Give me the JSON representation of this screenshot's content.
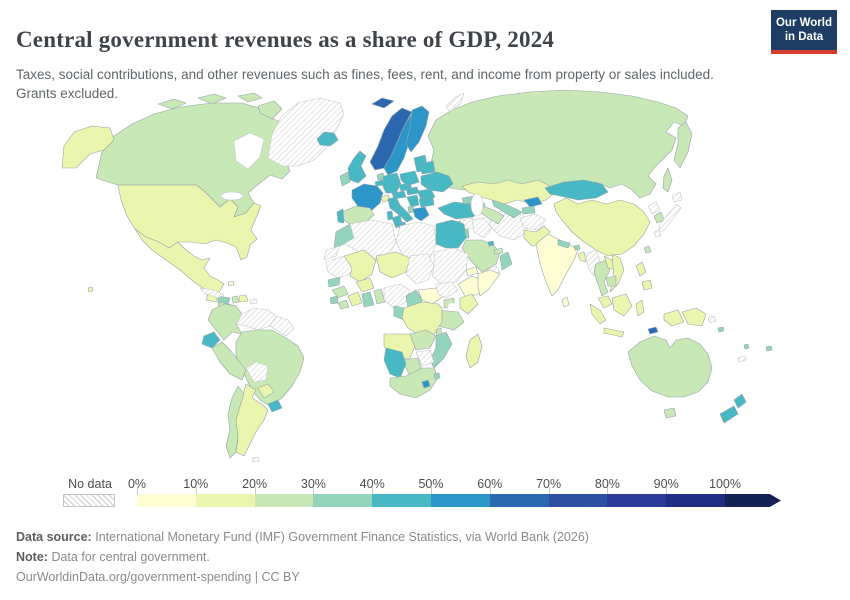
{
  "header": {
    "title": "Central government revenues as a share of GDP, 2024",
    "subtitle": "Taxes, social contributions, and other revenues such as fines, fees, rent, and income from property or sales included. Grants excluded.",
    "logo_line1": "Our World",
    "logo_line2": "in Data",
    "logo_bg": "#1d3d63",
    "logo_accent": "#d73c32"
  },
  "legend": {
    "no_data_label": "No data",
    "tick_labels": [
      "0%",
      "10%",
      "20%",
      "30%",
      "40%",
      "50%",
      "60%",
      "70%",
      "80%",
      "90%",
      "100%"
    ],
    "segment_colors": [
      "#fefdd3",
      "#eaf5ae",
      "#c8e8b6",
      "#93d5bc",
      "#48b8c5",
      "#2d96c9",
      "#2b68b0",
      "#2d4fa4",
      "#2c3a97",
      "#202d82"
    ],
    "arrow_color": "#132153"
  },
  "footer": {
    "data_source_label": "Data source:",
    "data_source": "International Monetary Fund (IMF) Government Finance Statistics, via World Bank (2026)",
    "note_label": "Note:",
    "note": "Data for central government.",
    "link": "OurWorldinData.org/government-spending | CC BY"
  },
  "chart_data": {
    "type": "choropleth",
    "title": "Central government revenues as a share of GDP, 2024",
    "unit": "% of GDP",
    "legend_position": "bottom",
    "bins": [
      "0-10%",
      "10-20%",
      "20-30%",
      "30-40%",
      "40-50%",
      "50-60%",
      "60-70%",
      "70-80%",
      "80-90%",
      "90-100%",
      ">100%"
    ],
    "palette": {
      "0-10%": "#fefdd3",
      "10-20%": "#eaf5ae",
      "20-30%": "#c8e8b6",
      "30-40%": "#93d5bc",
      "40-50%": "#48b8c5",
      "50-60%": "#2d96c9",
      "60-70%": "#2b68b0",
      "70-80%": "#2d4fa4",
      "80-90%": "#2c3a97",
      "90-100%": "#202d82",
      ">100%": "#132153",
      "no-data": "hatched"
    },
    "countries": {
      "canada": {
        "name": "Canada",
        "bin": "20-30%"
      },
      "united-states": {
        "name": "United States",
        "bin": "10-20%"
      },
      "mexico": {
        "name": "Mexico",
        "bin": "10-20%"
      },
      "greenland": {
        "name": "Greenland",
        "bin": "no-data"
      },
      "iceland": {
        "name": "Iceland",
        "bin": "40-50%"
      },
      "guatemala": {
        "name": "Guatemala",
        "bin": "10-20%"
      },
      "honduras": {
        "name": "Honduras",
        "bin": "30-40%"
      },
      "nicaragua": {
        "name": "Nicaragua",
        "bin": "30-40%"
      },
      "costa-rica": {
        "name": "Costa Rica",
        "bin": "20-30%"
      },
      "panama": {
        "name": "Panama",
        "bin": "30-40%"
      },
      "cuba": {
        "name": "Cuba",
        "bin": "no-data"
      },
      "haiti": {
        "name": "Haiti",
        "bin": "20-30%"
      },
      "dominican-republic": {
        "name": "Dominican Republic",
        "bin": "10-20%"
      },
      "jamaica": {
        "name": "Jamaica",
        "bin": "20-30%"
      },
      "puerto-rico": {
        "name": "Puerto Rico",
        "bin": "no-data"
      },
      "bahamas": {
        "name": "Bahamas",
        "bin": "0-10%"
      },
      "trinidad-and-tobago": {
        "name": "Trinidad and Tobago",
        "bin": "20-30%"
      },
      "colombia": {
        "name": "Colombia",
        "bin": "20-30%"
      },
      "venezuela": {
        "name": "Venezuela",
        "bin": "no-data"
      },
      "guyana": {
        "name": "Guyana",
        "bin": "no-data"
      },
      "ecuador": {
        "name": "Ecuador",
        "bin": "40-50%"
      },
      "peru": {
        "name": "Peru",
        "bin": "20-30%"
      },
      "brazil": {
        "name": "Brazil",
        "bin": "20-30%"
      },
      "bolivia": {
        "name": "Bolivia",
        "bin": "no-data"
      },
      "paraguay": {
        "name": "Paraguay",
        "bin": "10-20%"
      },
      "uruguay": {
        "name": "Uruguay",
        "bin": "40-50%"
      },
      "argentina": {
        "name": "Argentina",
        "bin": "10-20%"
      },
      "chile": {
        "name": "Chile",
        "bin": "20-30%"
      },
      "norway": {
        "name": "Norway",
        "bin": "60-70%"
      },
      "sweden": {
        "name": "Sweden",
        "bin": "50-60%"
      },
      "finland": {
        "name": "Finland",
        "bin": "50-60%"
      },
      "denmark": {
        "name": "Denmark",
        "bin": "40-50%"
      },
      "baltic-states": {
        "name": "Estonia, Latvia, Lithuania",
        "bin": "40-50%"
      },
      "united-kingdom": {
        "name": "United Kingdom",
        "bin": "40-50%"
      },
      "ireland": {
        "name": "Ireland",
        "bin": "30-40%"
      },
      "netherlands": {
        "name": "Netherlands",
        "bin": "30-40%"
      },
      "belgium": {
        "name": "Belgium",
        "bin": "40-50%"
      },
      "germany": {
        "name": "Germany",
        "bin": "40-50%"
      },
      "france": {
        "name": "France",
        "bin": "50-60%"
      },
      "switzerland": {
        "name": "Switzerland",
        "bin": "10-20%"
      },
      "spain": {
        "name": "Spain",
        "bin": "20-30%"
      },
      "portugal": {
        "name": "Portugal",
        "bin": "40-50%"
      },
      "italy": {
        "name": "Italy",
        "bin": "40-50%"
      },
      "austria": {
        "name": "Austria",
        "bin": "40-50%"
      },
      "czechia": {
        "name": "Czechia",
        "bin": "40-50%"
      },
      "poland": {
        "name": "Poland",
        "bin": "40-50%"
      },
      "belarus": {
        "name": "Belarus",
        "bin": "40-50%"
      },
      "ukraine": {
        "name": "Ukraine",
        "bin": "40-50%"
      },
      "romania": {
        "name": "Romania",
        "bin": "40-50%"
      },
      "hungary": {
        "name": "Hungary",
        "bin": "40-50%"
      },
      "serbia": {
        "name": "Serbia",
        "bin": "40-50%"
      },
      "bulgaria": {
        "name": "Bulgaria",
        "bin": "40-50%"
      },
      "greece": {
        "name": "Greece",
        "bin": "50-60%"
      },
      "albania": {
        "name": "Albania",
        "bin": "30-40%"
      },
      "russia": {
        "name": "Russia",
        "bin": "20-30%"
      },
      "turkey": {
        "name": "Turkey",
        "bin": "40-50%"
      },
      "cyprus": {
        "name": "Cyprus",
        "bin": "30-40%"
      },
      "georgia": {
        "name": "Georgia",
        "bin": "30-40%"
      },
      "armenia": {
        "name": "Armenia",
        "bin": "40-50%"
      },
      "azerbaijan": {
        "name": "Azerbaijan",
        "bin": "30-40%"
      },
      "syria": {
        "name": "Syria",
        "bin": "no-data"
      },
      "israel": {
        "name": "Israel",
        "bin": "50-60%"
      },
      "jordan": {
        "name": "Jordan",
        "bin": "30-40%"
      },
      "iraq": {
        "name": "Iraq",
        "bin": "no-data"
      },
      "iran": {
        "name": "Iran",
        "bin": "no-data"
      },
      "saudi-arabia": {
        "name": "Saudi Arabia",
        "bin": "20-30%"
      },
      "yemen": {
        "name": "Yemen",
        "bin": "no-data"
      },
      "oman": {
        "name": "Oman",
        "bin": "30-40%"
      },
      "united-arab-emirates": {
        "name": "United Arab Emirates",
        "bin": "20-30%"
      },
      "kuwait": {
        "name": "Kuwait",
        "bin": "40-50%"
      },
      "kazakhstan": {
        "name": "Kazakhstan",
        "bin": "10-20%"
      },
      "uzbekistan": {
        "name": "Uzbekistan",
        "bin": "30-40%"
      },
      "turkmenistan": {
        "name": "Turkmenistan",
        "bin": "20-30%"
      },
      "kyrgyzstan": {
        "name": "Kyrgyzstan",
        "bin": "50-60%"
      },
      "tajikistan": {
        "name": "Tajikistan",
        "bin": "30-40%"
      },
      "afghanistan": {
        "name": "Afghanistan",
        "bin": "no-data"
      },
      "pakistan": {
        "name": "Pakistan",
        "bin": "10-20%"
      },
      "mongolia": {
        "name": "Mongolia",
        "bin": "40-50%"
      },
      "china": {
        "name": "China",
        "bin": "10-20%"
      },
      "taiwan": {
        "name": "Taiwan",
        "bin": "20-30%"
      },
      "north-korea": {
        "name": "North Korea",
        "bin": "no-data"
      },
      "south-korea": {
        "name": "South Korea",
        "bin": "20-30%"
      },
      "japan": {
        "name": "Japan",
        "bin": "no-data"
      },
      "india": {
        "name": "India",
        "bin": "0-10%"
      },
      "nepal": {
        "name": "Nepal",
        "bin": "30-40%"
      },
      "bhutan": {
        "name": "Bhutan",
        "bin": "30-40%"
      },
      "bangladesh": {
        "name": "Bangladesh",
        "bin": "10-20%"
      },
      "sri-lanka": {
        "name": "Sri Lanka",
        "bin": "0-10%"
      },
      "myanmar": {
        "name": "Myanmar",
        "bin": "no-data"
      },
      "thailand": {
        "name": "Thailand",
        "bin": "20-30%"
      },
      "laos": {
        "name": "Laos",
        "bin": "10-20%"
      },
      "vietnam": {
        "name": "Vietnam",
        "bin": "10-20%"
      },
      "cambodia": {
        "name": "Cambodia",
        "bin": "20-30%"
      },
      "malaysia": {
        "name": "Malaysia",
        "bin": "10-20%"
      },
      "indonesia": {
        "name": "Indonesia",
        "bin": "10-20%"
      },
      "philippines": {
        "name": "Philippines",
        "bin": "10-20%"
      },
      "papua-new-guinea": {
        "name": "Papua New Guinea",
        "bin": "10-20%"
      },
      "timor-leste": {
        "name": "Timor-Leste",
        "bin": "60-70%"
      },
      "australia": {
        "name": "Australia",
        "bin": "20-30%"
      },
      "new-zealand": {
        "name": "New Zealand",
        "bin": "40-50%"
      },
      "fiji": {
        "name": "Fiji",
        "bin": "30-40%"
      },
      "solomon-islands": {
        "name": "Solomon Islands",
        "bin": "30-40%"
      },
      "vanuatu": {
        "name": "Vanuatu",
        "bin": "30-40%"
      },
      "new-caledonia": {
        "name": "New Caledonia",
        "bin": "no-data"
      },
      "morocco": {
        "name": "Morocco",
        "bin": "30-40%"
      },
      "western-sahara": {
        "name": "Western Sahara",
        "bin": "no-data"
      },
      "algeria": {
        "name": "Algeria",
        "bin": "no-data"
      },
      "tunisia": {
        "name": "Tunisia",
        "bin": "40-50%"
      },
      "libya": {
        "name": "Libya",
        "bin": "no-data"
      },
      "egypt": {
        "name": "Egypt",
        "bin": "40-50%"
      },
      "mauritania": {
        "name": "Mauritania",
        "bin": "no-data"
      },
      "mali": {
        "name": "Mali",
        "bin": "10-20%"
      },
      "niger": {
        "name": "Niger",
        "bin": "10-20%"
      },
      "chad": {
        "name": "Chad",
        "bin": "no-data"
      },
      "sudan": {
        "name": "Sudan",
        "bin": "no-data"
      },
      "eritrea": {
        "name": "Eritrea",
        "bin": "0-10%"
      },
      "ethiopia": {
        "name": "Ethiopia",
        "bin": "0-10%"
      },
      "somalia": {
        "name": "Somalia",
        "bin": "0-10%"
      },
      "senegal": {
        "name": "Senegal",
        "bin": "30-40%"
      },
      "guinea": {
        "name": "Guinea",
        "bin": "20-30%"
      },
      "sierra-leone": {
        "name": "Sierra Leone",
        "bin": "30-40%"
      },
      "liberia": {
        "name": "Liberia",
        "bin": "20-30%"
      },
      "cote-divoire": {
        "name": "Cote d'Ivoire",
        "bin": "10-20%"
      },
      "ghana": {
        "name": "Ghana",
        "bin": "30-40%"
      },
      "togo": {
        "name": "Togo",
        "bin": "20-30%"
      },
      "burkina-faso": {
        "name": "Burkina Faso",
        "bin": "10-20%"
      },
      "nigeria": {
        "name": "Nigeria",
        "bin": "no-data"
      },
      "cameroon": {
        "name": "Cameroon",
        "bin": "30-40%"
      },
      "central-african-republic": {
        "name": "Central African Republic",
        "bin": "0-10%"
      },
      "south-sudan": {
        "name": "South Sudan",
        "bin": "no-data"
      },
      "uganda": {
        "name": "Uganda",
        "bin": "20-30%"
      },
      "kenya": {
        "name": "Kenya",
        "bin": "10-20%"
      },
      "tanzania": {
        "name": "Tanzania",
        "bin": "20-30%"
      },
      "congo": {
        "name": "Congo",
        "bin": "30-40%"
      },
      "democratic-republic-of-congo": {
        "name": "Democratic Republic of Congo",
        "bin": "10-20%"
      },
      "angola": {
        "name": "Angola",
        "bin": "10-20%"
      },
      "zambia": {
        "name": "Zambia",
        "bin": "20-30%"
      },
      "malawi": {
        "name": "Malawi",
        "bin": "20-30%"
      },
      "mozambique": {
        "name": "Mozambique",
        "bin": "30-40%"
      },
      "zimbabwe": {
        "name": "Zimbabwe",
        "bin": "no-data"
      },
      "botswana": {
        "name": "Botswana",
        "bin": "20-30%"
      },
      "namibia": {
        "name": "Namibia",
        "bin": "40-50%"
      },
      "south-africa": {
        "name": "South Africa",
        "bin": "20-30%"
      },
      "lesotho": {
        "name": "Lesotho",
        "bin": "50-60%"
      },
      "eswatini": {
        "name": "Eswatini",
        "bin": "30-40%"
      },
      "madagascar": {
        "name": "Madagascar",
        "bin": "10-20%"
      }
    }
  }
}
